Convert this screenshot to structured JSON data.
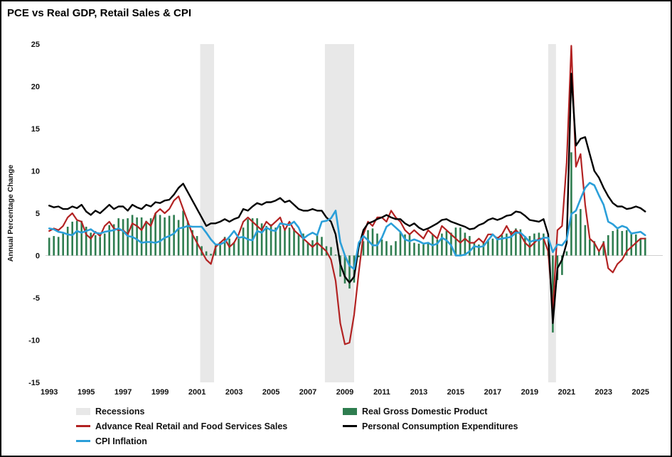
{
  "title": "PCE vs Real GDP, Retail Sales & CPI",
  "ylabel": "Annual Percentage Change",
  "legend": [
    {
      "label": "Recessions",
      "color": "#e8e8e8"
    },
    {
      "label": "Real Gross Domestic Product",
      "color": "#2e7d4f"
    },
    {
      "label": "Advance Real Retail and Food Services Sales",
      "color": "#b22222"
    },
    {
      "label": "Personal Consumption Expenditures",
      "color": "#000000"
    },
    {
      "label": "CPI Inflation",
      "color": "#2b9fd9"
    }
  ],
  "chart_data": {
    "type": "combo_bar_line",
    "title": "PCE vs Real GDP, Retail Sales & CPI",
    "xlabel": "",
    "ylabel": "Annual Percentage Change",
    "xlim": [
      1992.8,
      2026.2
    ],
    "ylim": [
      -15,
      25
    ],
    "x_ticks": [
      1993,
      1995,
      1997,
      1999,
      2001,
      2003,
      2005,
      2007,
      2009,
      2011,
      2013,
      2015,
      2017,
      2019,
      2021,
      2023,
      2025
    ],
    "y_ticks": [
      -15,
      -10,
      -5,
      0,
      5,
      10,
      15,
      20,
      25
    ],
    "grid": false,
    "legend_position": "bottom",
    "recession_color": "#e8e8e8",
    "recessions": [
      [
        2001.17,
        2001.92
      ],
      [
        2007.92,
        2009.5
      ],
      [
        2020.0,
        2020.42
      ]
    ],
    "x_start": 1993.0,
    "x_step": 0.25,
    "series": [
      {
        "name": "Real Gross Domestic Product",
        "type": "bar",
        "color": "#2e7d4f",
        "values": [
          2.1,
          2.3,
          2.2,
          2.6,
          3.4,
          4.0,
          4.1,
          4.1,
          3.4,
          2.7,
          2.4,
          2.2,
          2.6,
          3.6,
          3.7,
          4.4,
          4.3,
          4.4,
          4.8,
          4.5,
          4.5,
          4.1,
          4.4,
          5.0,
          4.8,
          4.5,
          4.7,
          4.8,
          4.2,
          5.3,
          4.1,
          3.0,
          2.3,
          1.1,
          0.5,
          0.2,
          1.2,
          1.6,
          2.2,
          2.0,
          1.6,
          2.0,
          3.3,
          4.3,
          4.4,
          4.4,
          3.8,
          3.5,
          3.7,
          3.3,
          3.5,
          3.0,
          3.3,
          3.2,
          2.5,
          2.6,
          1.5,
          1.8,
          2.4,
          2.2,
          1.1,
          1.0,
          0.1,
          -2.5,
          -3.3,
          -3.9,
          -3.2,
          -0.2,
          1.7,
          3.0,
          3.2,
          2.6,
          1.9,
          1.7,
          1.2,
          1.7,
          2.8,
          2.5,
          2.6,
          1.5,
          1.4,
          1.3,
          1.6,
          2.5,
          1.9,
          2.6,
          2.9,
          2.7,
          3.3,
          3.3,
          2.7,
          2.3,
          1.6,
          1.3,
          1.6,
          1.9,
          2.0,
          2.2,
          2.4,
          2.6,
          2.9,
          3.2,
          3.1,
          2.3,
          2.3,
          2.6,
          2.7,
          2.6,
          0.6,
          -9.1,
          -2.9,
          -2.3,
          0.5,
          12.2,
          4.9,
          5.5,
          3.6,
          1.9,
          1.7,
          0.7,
          1.7,
          2.4,
          2.9,
          3.1,
          2.9,
          3.0,
          2.7,
          2.5,
          2.0,
          2.1
        ]
      },
      {
        "name": "Advance Real Retail and Food Services Sales",
        "type": "line",
        "color": "#b22222",
        "values": [
          2.9,
          3.2,
          3.0,
          3.5,
          4.5,
          5.0,
          4.2,
          4.0,
          2.5,
          2.0,
          2.8,
          2.3,
          3.5,
          4.0,
          3.2,
          3.0,
          3.0,
          2.5,
          3.8,
          3.5,
          3.0,
          4.0,
          3.5,
          5.0,
          5.5,
          5.0,
          5.5,
          6.5,
          7.0,
          5.5,
          4.0,
          2.5,
          1.5,
          0.5,
          -0.5,
          -1.0,
          1.0,
          1.5,
          2.0,
          1.0,
          1.5,
          2.5,
          4.0,
          4.5,
          4.0,
          3.5,
          3.0,
          4.0,
          3.5,
          4.0,
          4.5,
          3.0,
          4.0,
          3.0,
          2.5,
          2.0,
          1.5,
          1.0,
          1.5,
          1.0,
          0.5,
          -0.5,
          -3.0,
          -8.0,
          -10.5,
          -10.3,
          -7.0,
          -2.0,
          2.5,
          4.0,
          3.5,
          4.5,
          4.5,
          4.0,
          5.3,
          4.5,
          4.0,
          3.0,
          2.5,
          3.0,
          2.5,
          2.0,
          3.0,
          2.5,
          2.0,
          3.5,
          3.0,
          2.5,
          2.0,
          1.5,
          2.0,
          1.5,
          1.5,
          2.0,
          1.5,
          2.5,
          2.5,
          2.0,
          2.5,
          3.5,
          2.5,
          3.0,
          2.5,
          1.5,
          1.0,
          1.5,
          2.0,
          2.0,
          0.5,
          -6.5,
          3.0,
          3.5,
          11.0,
          24.8,
          10.5,
          12.0,
          6.0,
          2.0,
          1.5,
          0.5,
          1.5,
          -1.5,
          -2.0,
          -1.0,
          -0.5,
          0.5,
          1.0,
          1.5,
          2.0,
          2.0
        ]
      },
      {
        "name": "Personal Consumption Expenditures",
        "type": "line",
        "color": "#000000",
        "values": [
          5.9,
          5.7,
          5.8,
          5.5,
          5.5,
          5.8,
          5.6,
          6.0,
          5.2,
          4.8,
          5.3,
          5.0,
          5.5,
          6.0,
          5.5,
          5.8,
          5.8,
          5.3,
          6.0,
          5.7,
          5.5,
          6.0,
          5.8,
          6.3,
          6.2,
          6.5,
          6.6,
          7.2,
          8.0,
          8.5,
          7.5,
          6.5,
          5.5,
          4.5,
          3.5,
          3.8,
          3.8,
          4.0,
          4.3,
          4.0,
          4.3,
          4.5,
          5.5,
          5.3,
          5.8,
          6.2,
          6.0,
          6.3,
          6.3,
          6.5,
          6.8,
          6.3,
          6.5,
          6.0,
          5.5,
          5.3,
          5.3,
          5.5,
          5.3,
          5.3,
          4.5,
          4.0,
          2.5,
          -1.0,
          -2.5,
          -3.2,
          -2.5,
          1.0,
          3.0,
          3.8,
          4.0,
          4.3,
          4.5,
          4.8,
          4.5,
          4.3,
          4.3,
          3.8,
          3.5,
          3.8,
          3.3,
          3.0,
          3.2,
          3.5,
          3.8,
          4.2,
          4.3,
          4.0,
          3.8,
          3.6,
          3.4,
          3.1,
          3.2,
          3.6,
          3.8,
          4.2,
          4.4,
          4.2,
          4.4,
          4.7,
          4.8,
          5.2,
          5.1,
          4.7,
          4.2,
          4.1,
          4.0,
          4.3,
          2.5,
          -8.0,
          -1.5,
          -0.5,
          1.5,
          21.5,
          13.0,
          13.8,
          14.0,
          12.0,
          10.0,
          9.2,
          8.0,
          7.0,
          6.2,
          5.8,
          5.8,
          5.5,
          5.6,
          5.8,
          5.6,
          5.2
        ]
      },
      {
        "name": "CPI Inflation",
        "type": "line",
        "color": "#2b9fd9",
        "values": [
          3.2,
          3.1,
          2.8,
          2.7,
          2.5,
          2.4,
          2.9,
          2.7,
          2.9,
          3.1,
          2.7,
          2.6,
          2.8,
          2.9,
          3.0,
          3.2,
          2.9,
          2.3,
          2.2,
          1.9,
          1.5,
          1.6,
          1.6,
          1.5,
          1.7,
          2.1,
          2.3,
          2.6,
          3.2,
          3.3,
          3.5,
          3.4,
          3.4,
          3.4,
          2.7,
          1.9,
          1.3,
          1.3,
          1.6,
          2.2,
          2.9,
          2.1,
          2.2,
          1.9,
          1.8,
          2.9,
          2.7,
          3.3,
          3.0,
          2.9,
          3.8,
          3.7,
          3.6,
          4.0,
          3.3,
          2.0,
          2.4,
          2.7,
          2.4,
          4.0,
          4.1,
          4.4,
          5.3,
          1.6,
          0.0,
          -1.2,
          -1.6,
          1.5,
          2.3,
          1.8,
          1.2,
          1.2,
          2.1,
          3.4,
          3.8,
          3.3,
          2.8,
          1.9,
          1.7,
          1.9,
          1.7,
          1.4,
          1.5,
          1.2,
          1.4,
          2.1,
          1.8,
          1.2,
          0.0,
          0.0,
          0.1,
          0.5,
          1.1,
          1.0,
          1.1,
          1.8,
          2.5,
          1.9,
          2.0,
          2.1,
          2.2,
          2.7,
          2.7,
          2.2,
          1.6,
          1.8,
          1.8,
          2.1,
          2.1,
          0.4,
          1.3,
          1.2,
          1.9,
          4.9,
          5.3,
          6.7,
          8.0,
          8.6,
          8.3,
          7.1,
          6.0,
          4.0,
          3.7,
          3.2,
          3.5,
          3.3,
          2.6,
          2.7,
          2.8,
          2.4
        ]
      }
    ]
  }
}
